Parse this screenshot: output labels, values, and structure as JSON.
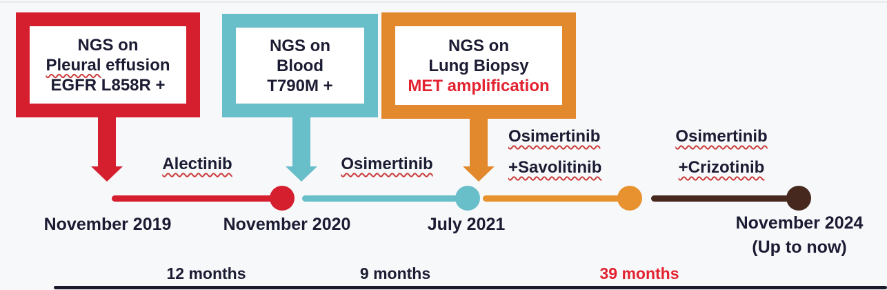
{
  "figure": {
    "type": "treatment-timeline-diagram",
    "background": "#f6f8f9"
  },
  "ngs_boxes": [
    {
      "name": "ngs-pleural-effusion",
      "border_color": "#d51f2f",
      "line1": "NGS on",
      "line2_word": "Pleural",
      "line2_rest": " effusion",
      "line3": "EGFR L858R +"
    },
    {
      "name": "ngs-blood",
      "border_color": "#68bec9",
      "line1": "NGS on",
      "line2": "Blood",
      "line3": "T790M +"
    },
    {
      "name": "ngs-lung-biopsy",
      "border_color": "#e2892e",
      "line1": "NGS on",
      "line2": "Lung Biopsy",
      "line3": "MET amplification",
      "line3_color": "#e32230"
    }
  ],
  "treatments": [
    {
      "name": "alectinib",
      "lines": [
        "Alectinib"
      ]
    },
    {
      "name": "osimertinib",
      "lines": [
        "Osimertinib"
      ]
    },
    {
      "name": "osimertinib-savolitinib",
      "lines": [
        "Osimertinib",
        "+Savolitinib"
      ]
    },
    {
      "name": "osimertinib-crizotinib",
      "lines": [
        "Osimertinib",
        "+Crizotinib"
      ]
    }
  ],
  "timeline": {
    "segment_colors": [
      "#d51f2f",
      "#68bec9",
      "#e8922f",
      "#46281e"
    ],
    "dates": [
      {
        "label": "November 2019"
      },
      {
        "label": "November 2020"
      },
      {
        "label": "July 2021"
      },
      {
        "label": "November 2024",
        "sublabel": "(Up to now)"
      }
    ],
    "durations": [
      {
        "label": "12 months",
        "color": "#1b1b33"
      },
      {
        "label": "9 months",
        "color": "#1b1b33"
      },
      {
        "label": "39 months",
        "color": "#e32230"
      }
    ]
  },
  "colors": {
    "red": "#d51f2f",
    "teal": "#68bec9",
    "orange": "#e2892e",
    "dark_brown": "#46281e",
    "navy_text": "#1b1b33",
    "highlight_red": "#e32230",
    "squiggle_red": "#cc3b3b",
    "baseline": "#1b1b2e"
  }
}
